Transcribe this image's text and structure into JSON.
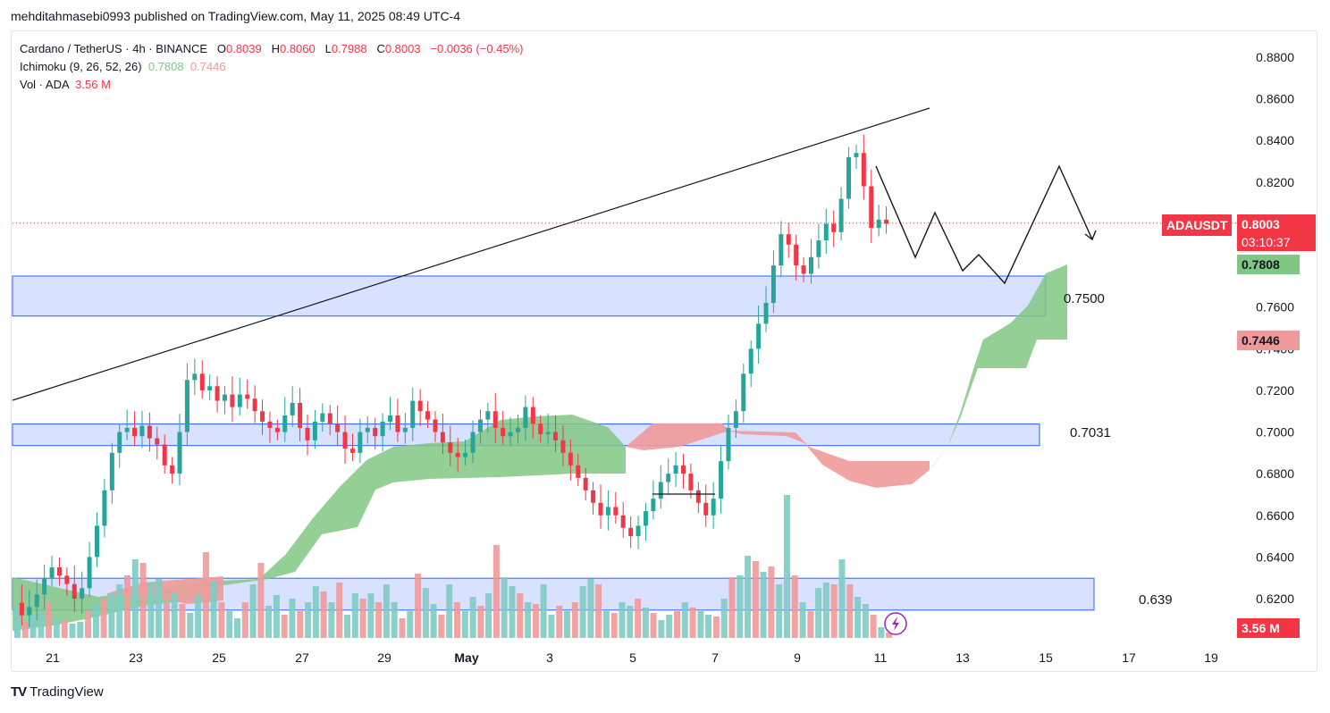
{
  "header": {
    "publisher": "mehditahmasebi0993 published on TradingView.com, May 11, 2025 08:49 UTC-4"
  },
  "legend": {
    "symbol": "Cardano / TetherUS · 4h · BINANCE",
    "o_label": "O",
    "o_value": "0.8039",
    "h_label": "H",
    "h_value": "0.8060",
    "l_label": "L",
    "l_value": "0.7988",
    "c_label": "C",
    "c_value": "0.8003",
    "change": "−0.0036 (−0.45%)",
    "ichimoku_label": "Ichimoku (9, 26, 52, 26)",
    "ichimoku_v1": "0.7808",
    "ichimoku_v2": "0.7446",
    "vol_label": "Vol · ADA",
    "vol_value": "3.56 M"
  },
  "badges": {
    "ticker": "ADAUSDT",
    "price": "0.8003",
    "countdown": "03:10:37",
    "span_a": "0.7808",
    "span_b": "0.7446",
    "volume": "3.56 M"
  },
  "annotations": {
    "level_high": "0.7500",
    "level_mid": "0.7031",
    "level_low": "0.639"
  },
  "footer": {
    "brand": "TradingView"
  },
  "colors": {
    "up": "#26a69a",
    "down": "#f23645",
    "zone_fill": "#d1dcff",
    "zone_stroke": "#2962ff",
    "kumo_bull": "#81c784",
    "kumo_bear": "#ef9a9a",
    "price_line": "#f23645",
    "span_a_badge": "#81c784",
    "span_b_badge": "#ef9a9a"
  },
  "chart_data": {
    "type": "candlestick",
    "title": "Cardano / TetherUS · 4h · BINANCE",
    "y_ticks": [
      "0.8800",
      "0.8600",
      "0.8400",
      "0.8200",
      "0.8000",
      "0.7800",
      "0.7600",
      "0.7400",
      "0.7200",
      "0.7000",
      "0.6800",
      "0.6600",
      "0.6400",
      "0.6200"
    ],
    "x_ticks": [
      "21",
      "23",
      "25",
      "27",
      "29",
      "May",
      "3",
      "5",
      "7",
      "9",
      "11",
      "13",
      "15",
      "17",
      "19"
    ],
    "ylim": [
      0.609,
      0.888
    ],
    "last_price": 0.8003,
    "zones": [
      {
        "price_low": 0.7557,
        "price_high": 0.7749,
        "label": "0.7500"
      },
      {
        "price_low": 0.6935,
        "price_high": 0.7039,
        "label": "0.7031"
      },
      {
        "price_low": 0.6145,
        "price_high": 0.6298,
        "label": "0.639"
      }
    ],
    "trendline": {
      "from": [
        "Apr 20",
        0.715
      ],
      "to": [
        "May 12",
        0.855
      ]
    },
    "projected_path": [
      0.828,
      0.807,
      0.785,
      0.806,
      0.777,
      0.785,
      0.773,
      0.827,
      0.792
    ],
    "candles_ohlc_approx": [
      [
        0.621,
        0.624,
        0.611,
        0.612
      ],
      [
        0.612,
        0.617,
        0.61,
        0.616
      ],
      [
        0.616,
        0.618,
        0.613,
        0.614
      ],
      [
        0.614,
        0.628,
        0.613,
        0.627
      ],
      [
        0.627,
        0.634,
        0.624,
        0.632
      ],
      [
        0.632,
        0.636,
        0.628,
        0.635
      ],
      [
        0.635,
        0.637,
        0.629,
        0.631
      ],
      [
        0.631,
        0.633,
        0.625,
        0.627
      ],
      [
        0.627,
        0.629,
        0.618,
        0.62
      ],
      [
        0.62,
        0.624,
        0.616,
        0.622
      ],
      [
        0.622,
        0.63,
        0.62,
        0.628
      ],
      [
        0.628,
        0.64,
        0.627,
        0.638
      ],
      [
        0.638,
        0.65,
        0.636,
        0.648
      ],
      [
        0.648,
        0.672,
        0.645,
        0.67
      ],
      [
        0.67,
        0.684,
        0.668,
        0.682
      ],
      [
        0.682,
        0.697,
        0.68,
        0.695
      ],
      [
        0.695,
        0.704,
        0.69,
        0.7
      ],
      [
        0.7,
        0.709,
        0.696,
        0.702
      ],
      [
        0.702,
        0.715,
        0.698,
        0.7
      ],
      [
        0.7,
        0.706,
        0.693,
        0.698
      ],
      [
        0.698,
        0.702,
        0.688,
        0.696
      ],
      [
        0.696,
        0.708,
        0.694,
        0.685
      ],
      [
        0.685,
        0.69,
        0.67,
        0.68
      ],
      [
        0.68,
        0.69,
        0.676,
        0.688
      ],
      [
        0.688,
        0.725,
        0.686,
        0.723
      ],
      [
        0.723,
        0.742,
        0.717,
        0.727
      ],
      [
        0.727,
        0.735,
        0.718,
        0.722
      ],
      [
        0.722,
        0.728,
        0.708,
        0.715
      ],
      [
        0.715,
        0.725,
        0.708,
        0.72
      ],
      [
        0.72,
        0.73,
        0.714,
        0.719
      ],
      [
        0.719,
        0.724,
        0.705,
        0.712
      ],
      [
        0.712,
        0.73,
        0.708,
        0.726
      ],
      [
        0.726,
        0.732,
        0.706,
        0.71
      ],
      [
        0.71,
        0.716,
        0.698,
        0.702
      ],
      [
        0.702,
        0.714,
        0.695,
        0.708
      ],
      [
        0.708,
        0.712,
        0.696,
        0.704
      ],
      [
        0.704,
        0.714,
        0.7,
        0.71
      ],
      [
        0.71,
        0.714,
        0.694,
        0.7
      ],
      [
        0.7,
        0.704,
        0.69,
        0.694
      ],
      [
        0.694,
        0.706,
        0.692,
        0.704
      ],
      [
        0.704,
        0.724,
        0.702,
        0.722
      ],
      [
        0.722,
        0.726,
        0.706,
        0.71
      ],
      [
        0.71,
        0.716,
        0.684,
        0.69
      ],
      [
        0.69,
        0.712,
        0.688,
        0.708
      ],
      [
        0.708,
        0.716,
        0.702,
        0.712
      ],
      [
        0.712,
        0.716,
        0.694,
        0.7
      ]
    ],
    "volume_unit": "M",
    "volume_last": 3.56
  }
}
